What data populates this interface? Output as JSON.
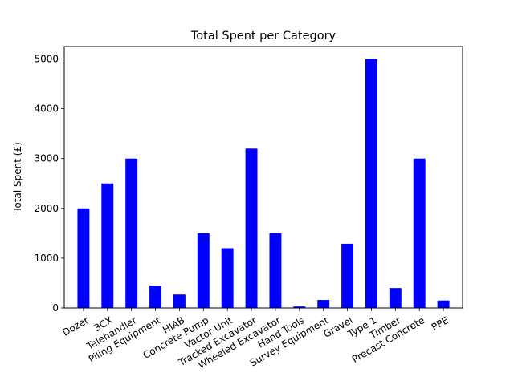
{
  "chart_data": {
    "type": "bar",
    "title": "Total Spent per Category",
    "xlabel": "",
    "ylabel": "Total Spent (£)",
    "categories": [
      "Dozer",
      "3CX",
      "Telehandler",
      "Piling Equipment",
      "HIAB",
      "Concrete Pump",
      "Vactor Unit",
      "Tracked Excavator",
      "Wheeled Excavator",
      "Hand Tools",
      "Survey Equipment",
      "Gravel",
      "Type 1",
      "Timber",
      "Precast Concrete",
      "PPE"
    ],
    "values": [
      2000,
      2500,
      3000,
      450,
      270,
      1500,
      1200,
      3200,
      1500,
      30,
      160,
      1290,
      5000,
      400,
      3000,
      150
    ],
    "ylim": [
      0,
      5250
    ],
    "yticks": [
      0,
      1000,
      2000,
      3000,
      4000,
      5000
    ],
    "bar_color": "#0000ff",
    "grid": false,
    "legend": false
  }
}
